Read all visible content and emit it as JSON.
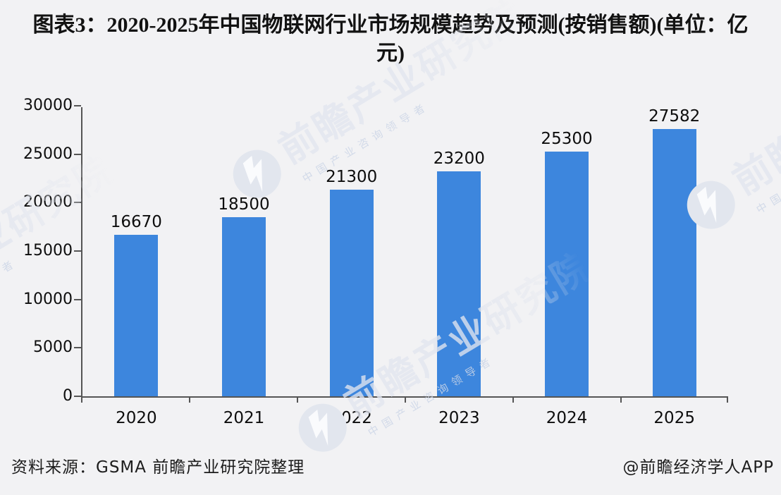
{
  "title": {
    "text": "图表3：2020-2025年中国物联网行业市场规模趋势及预测(按销售额)(单位：亿元)"
  },
  "chart_data": {
    "type": "bar",
    "title": "2020-2025年中国物联网行业市场规模趋势及预测(按销售额)",
    "unit": "亿元",
    "categories": [
      "2020",
      "2021",
      "2022",
      "2023",
      "2024",
      "2025"
    ],
    "values": [
      16670,
      18500,
      21300,
      23200,
      25300,
      27582
    ],
    "ylim": [
      0,
      30000
    ],
    "yticks": [
      0,
      5000,
      10000,
      15000,
      20000,
      25000,
      30000
    ],
    "bar_color": "#3d86dd",
    "grid": false,
    "legend_position": "none",
    "data_labels": true,
    "background": "#f2f2f4"
  },
  "footer": {
    "source": "资料来源：GSMA 前瞻产业研究院整理",
    "credit": "@前瞻经济学人APP"
  },
  "watermark": {
    "brand": "前瞻产业研究院",
    "tagline": "中国产业咨询领导者",
    "logo": "qianzhan-circle-logo"
  }
}
